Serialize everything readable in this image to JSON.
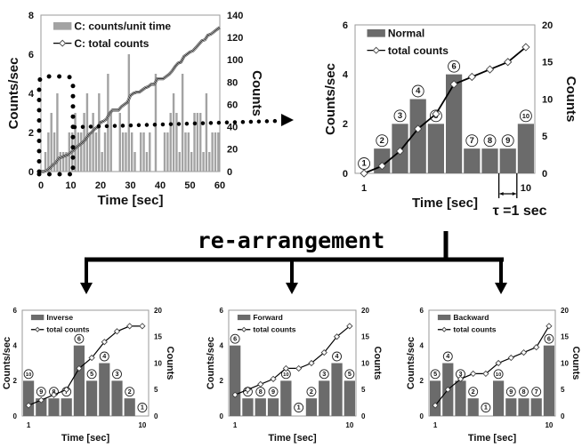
{
  "headline": "re-arrangement",
  "chart_data": [
    {
      "id": "measured",
      "type": "bar+line",
      "legend": [
        "C: counts/unit time",
        "C: total counts"
      ],
      "xlabel": "Time [sec]",
      "ylabel": "Counts/sec",
      "y2label": "Counts",
      "xlim": [
        0,
        60
      ],
      "ylim": [
        0,
        8
      ],
      "y2lim": [
        0,
        140
      ],
      "xticks": [
        "0",
        "10",
        "20",
        "30",
        "40",
        "50",
        "60"
      ],
      "yticks": [
        "0",
        "2",
        "4",
        "6",
        "8"
      ],
      "y2ticks": [
        "0",
        "20",
        "40",
        "60",
        "80",
        "100",
        "120",
        "140"
      ],
      "grid": false,
      "legend_position": "top-left",
      "bar_color": "#a3a3a3",
      "values": [
        0,
        1,
        2,
        3,
        2,
        4,
        1,
        1,
        1,
        2,
        2,
        3,
        2,
        2,
        3,
        4,
        2,
        3,
        2,
        4,
        1,
        2,
        5,
        3,
        0,
        0,
        3,
        2,
        2,
        6,
        2,
        1,
        0,
        2,
        2,
        1,
        2,
        0,
        5,
        0,
        0,
        2,
        2,
        3,
        4,
        3,
        1,
        5,
        2,
        2,
        1,
        3,
        3,
        3,
        1,
        4,
        1,
        2,
        2,
        2
      ]
    },
    {
      "id": "normal",
      "type": "bar+line",
      "legend": [
        "Normal",
        "total counts"
      ],
      "xlabel": "Time [sec]",
      "ylabel": "Counts/sec",
      "y2label": "Counts",
      "ylim": [
        0,
        6
      ],
      "y2lim": [
        0,
        20
      ],
      "xticks": [
        "1",
        "10"
      ],
      "yticks": [
        "0",
        "2",
        "4",
        "6"
      ],
      "y2ticks": [
        "0",
        "5",
        "10",
        "15",
        "20"
      ],
      "legend_position": "top-left",
      "bar_color": "#6b6b6b",
      "order_labels": [
        "1",
        "2",
        "3",
        "4",
        "5",
        "6",
        "7",
        "8",
        "9",
        "10"
      ],
      "values": [
        0,
        1,
        2,
        3,
        2,
        4,
        1,
        1,
        1,
        2
      ],
      "total_counts": [
        0,
        1,
        3,
        6,
        8,
        12,
        13,
        14,
        15,
        17
      ],
      "annotation": "τ =1 sec"
    },
    {
      "id": "inverse",
      "type": "bar+line",
      "legend": [
        "Inverse",
        "total counts"
      ],
      "xlabel": "Time [sec]",
      "ylabel": "Counts/sec",
      "y2label": "Counts",
      "ylim": [
        0,
        6
      ],
      "y2lim": [
        0,
        20
      ],
      "xticks": [
        "1",
        "10"
      ],
      "yticks": [
        "0",
        "2",
        "4",
        "6"
      ],
      "y2ticks": [
        "0",
        "5",
        "10",
        "15",
        "20"
      ],
      "legend_position": "top-left",
      "bar_color": "#6b6b6b",
      "order_labels": [
        "10",
        "9",
        "8",
        "7",
        "6",
        "5",
        "4",
        "3",
        "2",
        "1"
      ],
      "values": [
        2,
        1,
        1,
        1,
        4,
        2,
        3,
        2,
        1,
        0
      ],
      "total_counts": [
        2,
        3,
        4,
        5,
        9,
        11,
        14,
        16,
        17,
        17
      ]
    },
    {
      "id": "forward",
      "type": "bar+line",
      "legend": [
        "Forward",
        "total counts"
      ],
      "xlabel": "Time [sec]",
      "ylabel": "Counts/sec",
      "y2label": "Counts",
      "ylim": [
        0,
        6
      ],
      "y2lim": [
        0,
        20
      ],
      "xticks": [
        "1",
        "10"
      ],
      "yticks": [
        "0",
        "2",
        "4",
        "6"
      ],
      "y2ticks": [
        "0",
        "5",
        "10",
        "15",
        "20"
      ],
      "legend_position": "top-left",
      "bar_color": "#6b6b6b",
      "order_labels": [
        "6",
        "7",
        "8",
        "9",
        "10",
        "1",
        "2",
        "3",
        "4",
        "5"
      ],
      "values": [
        4,
        1,
        1,
        1,
        2,
        0,
        1,
        2,
        3,
        2
      ],
      "total_counts": [
        4,
        5,
        6,
        7,
        9,
        9,
        10,
        12,
        15,
        17
      ]
    },
    {
      "id": "backward",
      "type": "bar+line",
      "legend": [
        "Backward",
        "total counts"
      ],
      "xlabel": "Time [sec]",
      "ylabel": "Counts/sec",
      "y2label": "Counts",
      "ylim": [
        0,
        6
      ],
      "y2lim": [
        0,
        20
      ],
      "xticks": [
        "1",
        "10"
      ],
      "yticks": [
        "0",
        "2",
        "4",
        "6"
      ],
      "y2ticks": [
        "0",
        "5",
        "10",
        "15",
        "20"
      ],
      "legend_position": "top-left",
      "bar_color": "#6b6b6b",
      "order_labels": [
        "5",
        "4",
        "3",
        "2",
        "1",
        "10",
        "9",
        "8",
        "7",
        "6"
      ],
      "values": [
        2,
        3,
        2,
        1,
        0,
        2,
        1,
        1,
        1,
        4
      ],
      "total_counts": [
        2,
        5,
        7,
        8,
        8,
        10,
        11,
        12,
        13,
        17
      ]
    }
  ]
}
